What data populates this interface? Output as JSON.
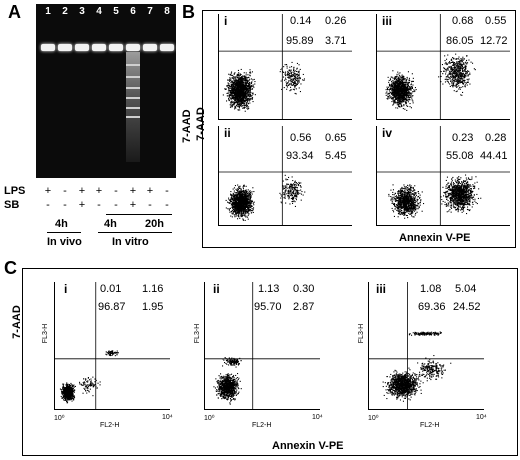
{
  "panels": {
    "A": "A",
    "B": "B",
    "C": "C"
  },
  "gel": {
    "lanes": [
      "1",
      "2",
      "3",
      "4",
      "5",
      "6",
      "7",
      "8"
    ],
    "rows": [
      {
        "label": "LPS",
        "signs": [
          "+",
          "-",
          "+",
          "+",
          "-",
          "+",
          "+",
          "-"
        ]
      },
      {
        "label": "SB",
        "signs": [
          "-",
          "-",
          "+",
          "-",
          "-",
          "+",
          "-",
          "-"
        ]
      }
    ],
    "groups": {
      "invivo_time": "4h",
      "invivo": "In vivo",
      "invitro_4h": "4h",
      "invitro_20h": "20h",
      "invitro": "In vitro"
    }
  },
  "panel_b": {
    "y_axis": "7-AAD",
    "x_axis": "Annexin V-PE",
    "plots": [
      {
        "label": "i",
        "ul": "0.14",
        "ur": "0.26",
        "ll": "95.89",
        "lr": "3.71"
      },
      {
        "label": "iii",
        "ul": "0.68",
        "ur": "0.55",
        "ll": "86.05",
        "lr": "12.72"
      },
      {
        "label": "ii",
        "ul": "0.56",
        "ur": "0.65",
        "ll": "93.34",
        "lr": "5.45"
      },
      {
        "label": "iv",
        "ul": "0.23",
        "ur": "0.28",
        "ll": "55.08",
        "lr": "44.41"
      }
    ]
  },
  "panel_c": {
    "y_axis": "7-AAD",
    "x_axis": "Annexin V-PE",
    "x_channel": "FL2-H",
    "y_channel": "FL3-H",
    "ticks": [
      "10⁰",
      "10¹",
      "10²",
      "10³",
      "10⁴"
    ],
    "plots": [
      {
        "label": "i",
        "ul": "0.01",
        "ur": "1.16",
        "ll": "96.87",
        "lr": "1.95"
      },
      {
        "label": "ii",
        "ul": "1.13",
        "ur": "0.30",
        "ll": "95.70",
        "lr": "2.87"
      },
      {
        "label": "iii",
        "ul": "1.08",
        "ur": "5.04",
        "ll": "69.36",
        "lr": "24.52"
      }
    ]
  }
}
